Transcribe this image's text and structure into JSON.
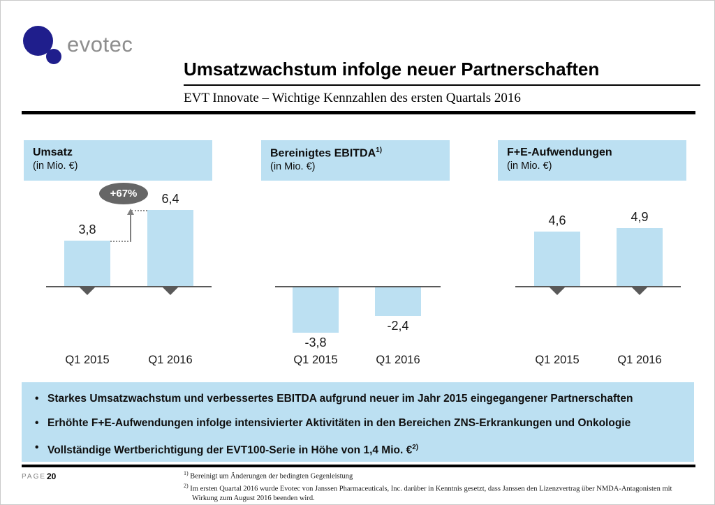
{
  "logo": {
    "brand": "evotec"
  },
  "header": {
    "title": "Umsatzwachstum infolge neuer Partnerschaften",
    "subtitle": "EVT Innovate – Wichtige Kennzahlen des ersten Quartals 2016"
  },
  "chart_data": [
    {
      "type": "bar",
      "title": "Umsatz",
      "title_sup": "",
      "unit": "(in Mio. €)",
      "categories": [
        "Q1 2015",
        "Q1 2016"
      ],
      "values": [
        3.8,
        6.4
      ],
      "value_labels": [
        "3,8",
        "6,4"
      ],
      "growth_badge": "+67%",
      "ylabel": "Mio. €",
      "ylim": [
        0,
        7
      ],
      "grid": false,
      "legend": false
    },
    {
      "type": "bar",
      "title": "Bereinigtes EBITDA",
      "title_sup": "1)",
      "unit": "(in Mio. €)",
      "categories": [
        "Q1 2015",
        "Q1 2016"
      ],
      "values": [
        -3.8,
        -2.4
      ],
      "value_labels": [
        "-3,8",
        "-2,4"
      ],
      "ylabel": "Mio. €",
      "ylim": [
        -4.5,
        0
      ],
      "grid": false,
      "legend": false
    },
    {
      "type": "bar",
      "title": "F+E-Aufwendungen",
      "title_sup": "",
      "unit": "(in Mio. €)",
      "categories": [
        "Q1 2015",
        "Q1 2016"
      ],
      "values": [
        4.6,
        4.9
      ],
      "value_labels": [
        "4,6",
        "4,9"
      ],
      "ylabel": "Mio. €",
      "ylim": [
        0,
        5.5
      ],
      "grid": false,
      "legend": false
    }
  ],
  "bullets": [
    {
      "text": "Starkes Umsatzwachstum und verbessertes EBITDA aufgrund neuer im Jahr 2015 eingegangener Partnerschaften",
      "sup": ""
    },
    {
      "text": "Erhöhte F+E-Aufwendungen infolge intensivierter Aktivitäten in den Bereichen ZNS-Erkrankungen und Onkologie",
      "sup": ""
    },
    {
      "text": "Vollständige Wertberichtigung der EVT100-Serie in Höhe von 1,4 Mio. €",
      "sup": "2)"
    }
  ],
  "footer": {
    "page_label": "PAGE",
    "page_number": "20",
    "footnotes": [
      {
        "sup": "1)",
        "text": "Bereinigt um Änderungen der bedingten Gegenleistung"
      },
      {
        "sup": "2)",
        "text": "Im ersten Quartal 2016 wurde Evotec von Janssen Pharmaceuticals, Inc. darüber in Kenntnis gesetzt, dass Janssen den Lizenzvertrag über NMDA-Antagonisten mit Wirkung zum August 2016 beenden wird."
      }
    ]
  },
  "colors": {
    "accent_blue": "#bce0f2",
    "logo_navy": "#1f1e8c",
    "axis_gray": "#595959",
    "badge_gray": "#666666"
  }
}
